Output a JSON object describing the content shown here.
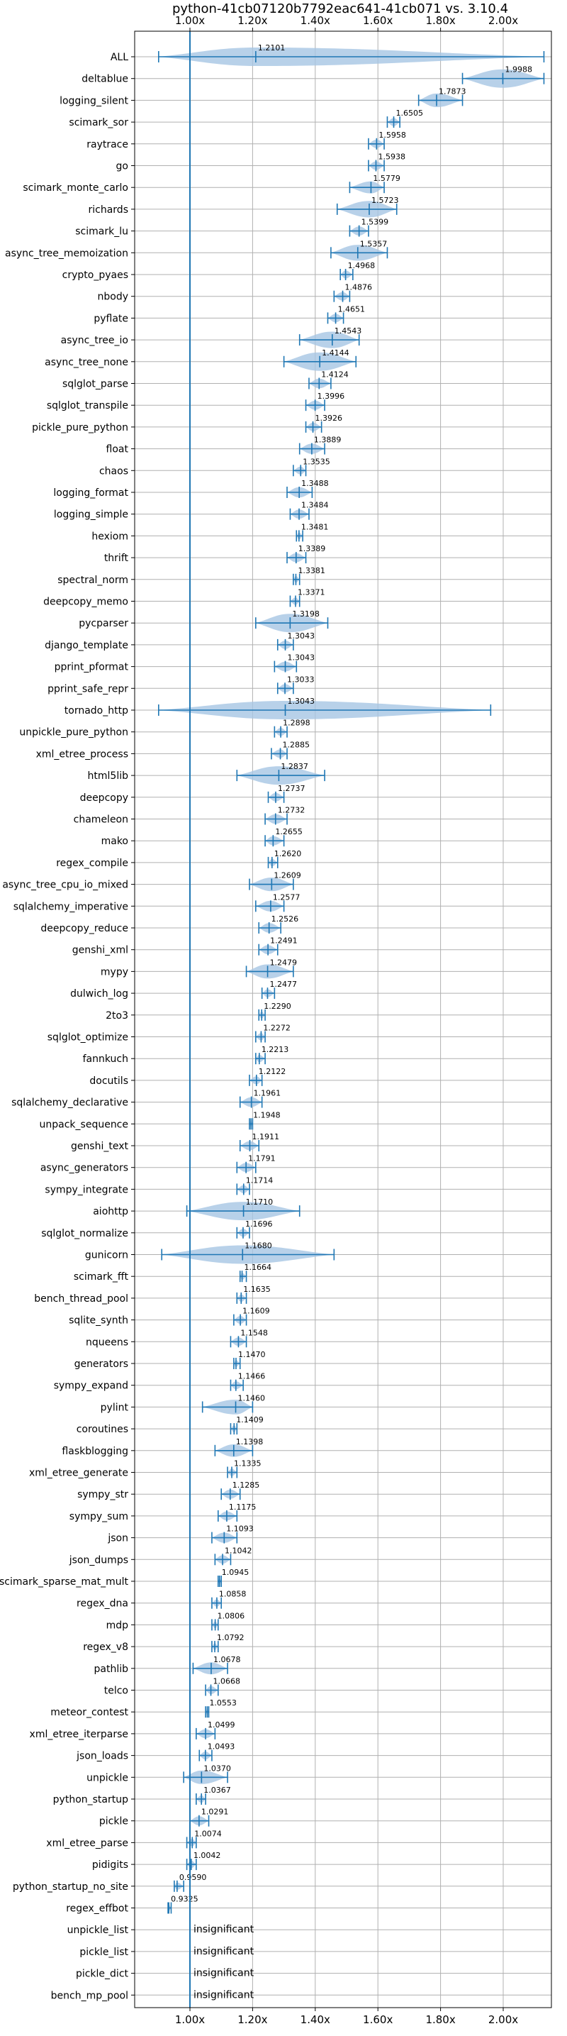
{
  "chart_data": {
    "type": "violin",
    "title": "python-41cb07120b7792eac641-41cb071 vs. 3.10.4",
    "xlim": [
      0.84,
      2.13
    ],
    "xticks": [
      1.0,
      1.2,
      1.4,
      1.6,
      1.8,
      2.0
    ],
    "xtick_labels": [
      "1.00x",
      "1.20x",
      "1.40x",
      "1.60x",
      "1.80x",
      "2.00x"
    ],
    "reference_line": 1.0,
    "grid": true,
    "colors": {
      "violin": "#a6c6e3",
      "whisker": "#1f77b4",
      "grid": "#b0b0b0"
    },
    "benchmarks": [
      {
        "name": "ALL",
        "value": 1.2101,
        "min": 0.9,
        "max": 2.13
      },
      {
        "name": "deltablue",
        "value": 1.9988,
        "min": 1.87,
        "max": 2.13
      },
      {
        "name": "logging_silent",
        "value": 1.7873,
        "min": 1.73,
        "max": 1.87
      },
      {
        "name": "scimark_sor",
        "value": 1.6505,
        "min": 1.63,
        "max": 1.67
      },
      {
        "name": "raytrace",
        "value": 1.5958,
        "min": 1.57,
        "max": 1.62
      },
      {
        "name": "go",
        "value": 1.5938,
        "min": 1.57,
        "max": 1.62
      },
      {
        "name": "scimark_monte_carlo",
        "value": 1.5779,
        "min": 1.51,
        "max": 1.62
      },
      {
        "name": "richards",
        "value": 1.5723,
        "min": 1.47,
        "max": 1.66
      },
      {
        "name": "scimark_lu",
        "value": 1.5399,
        "min": 1.51,
        "max": 1.57
      },
      {
        "name": "async_tree_memoization",
        "value": 1.5357,
        "min": 1.45,
        "max": 1.63
      },
      {
        "name": "crypto_pyaes",
        "value": 1.4968,
        "min": 1.48,
        "max": 1.52
      },
      {
        "name": "nbody",
        "value": 1.4876,
        "min": 1.46,
        "max": 1.51
      },
      {
        "name": "pyflate",
        "value": 1.4651,
        "min": 1.44,
        "max": 1.49
      },
      {
        "name": "async_tree_io",
        "value": 1.4543,
        "min": 1.35,
        "max": 1.54
      },
      {
        "name": "async_tree_none",
        "value": 1.4144,
        "min": 1.3,
        "max": 1.53
      },
      {
        "name": "sqlglot_parse",
        "value": 1.4124,
        "min": 1.38,
        "max": 1.45
      },
      {
        "name": "sqlglot_transpile",
        "value": 1.3996,
        "min": 1.37,
        "max": 1.43
      },
      {
        "name": "pickle_pure_python",
        "value": 1.3926,
        "min": 1.37,
        "max": 1.42
      },
      {
        "name": "float",
        "value": 1.3889,
        "min": 1.35,
        "max": 1.43
      },
      {
        "name": "chaos",
        "value": 1.3535,
        "min": 1.33,
        "max": 1.37
      },
      {
        "name": "logging_format",
        "value": 1.3488,
        "min": 1.31,
        "max": 1.39
      },
      {
        "name": "logging_simple",
        "value": 1.3484,
        "min": 1.32,
        "max": 1.38
      },
      {
        "name": "hexiom",
        "value": 1.3481,
        "min": 1.34,
        "max": 1.36
      },
      {
        "name": "thrift",
        "value": 1.3389,
        "min": 1.31,
        "max": 1.37
      },
      {
        "name": "spectral_norm",
        "value": 1.3381,
        "min": 1.33,
        "max": 1.35
      },
      {
        "name": "deepcopy_memo",
        "value": 1.3371,
        "min": 1.32,
        "max": 1.35
      },
      {
        "name": "pycparser",
        "value": 1.3198,
        "min": 1.21,
        "max": 1.44
      },
      {
        "name": "django_template",
        "value": 1.3043,
        "min": 1.28,
        "max": 1.33
      },
      {
        "name": "pprint_pformat",
        "value": 1.3043,
        "min": 1.27,
        "max": 1.34
      },
      {
        "name": "pprint_safe_repr",
        "value": 1.3033,
        "min": 1.28,
        "max": 1.33
      },
      {
        "name": "tornado_http",
        "value": 1.3043,
        "min": 0.9,
        "max": 1.96
      },
      {
        "name": "unpickle_pure_python",
        "value": 1.2898,
        "min": 1.27,
        "max": 1.31
      },
      {
        "name": "xml_etree_process",
        "value": 1.2885,
        "min": 1.26,
        "max": 1.31
      },
      {
        "name": "html5lib",
        "value": 1.2837,
        "min": 1.15,
        "max": 1.43
      },
      {
        "name": "deepcopy",
        "value": 1.2737,
        "min": 1.25,
        "max": 1.3
      },
      {
        "name": "chameleon",
        "value": 1.2732,
        "min": 1.24,
        "max": 1.31
      },
      {
        "name": "mako",
        "value": 1.2655,
        "min": 1.24,
        "max": 1.3
      },
      {
        "name": "regex_compile",
        "value": 1.262,
        "min": 1.25,
        "max": 1.28
      },
      {
        "name": "async_tree_cpu_io_mixed",
        "value": 1.2609,
        "min": 1.19,
        "max": 1.33
      },
      {
        "name": "sqlalchemy_imperative",
        "value": 1.2577,
        "min": 1.21,
        "max": 1.3
      },
      {
        "name": "deepcopy_reduce",
        "value": 1.2526,
        "min": 1.22,
        "max": 1.29
      },
      {
        "name": "genshi_xml",
        "value": 1.2491,
        "min": 1.22,
        "max": 1.28
      },
      {
        "name": "mypy",
        "value": 1.2479,
        "min": 1.18,
        "max": 1.33
      },
      {
        "name": "dulwich_log",
        "value": 1.2477,
        "min": 1.23,
        "max": 1.27
      },
      {
        "name": "2to3",
        "value": 1.229,
        "min": 1.22,
        "max": 1.24
      },
      {
        "name": "sqlglot_optimize",
        "value": 1.2272,
        "min": 1.21,
        "max": 1.24
      },
      {
        "name": "fannkuch",
        "value": 1.2213,
        "min": 1.21,
        "max": 1.24
      },
      {
        "name": "docutils",
        "value": 1.2122,
        "min": 1.19,
        "max": 1.23
      },
      {
        "name": "sqlalchemy_declarative",
        "value": 1.1961,
        "min": 1.16,
        "max": 1.23
      },
      {
        "name": "unpack_sequence",
        "value": 1.1948,
        "min": 1.19,
        "max": 1.2
      },
      {
        "name": "genshi_text",
        "value": 1.1911,
        "min": 1.16,
        "max": 1.22
      },
      {
        "name": "async_generators",
        "value": 1.1791,
        "min": 1.15,
        "max": 1.21
      },
      {
        "name": "sympy_integrate",
        "value": 1.1714,
        "min": 1.15,
        "max": 1.19
      },
      {
        "name": "aiohttp",
        "value": 1.171,
        "min": 0.99,
        "max": 1.35
      },
      {
        "name": "sqlglot_normalize",
        "value": 1.1696,
        "min": 1.15,
        "max": 1.19
      },
      {
        "name": "gunicorn",
        "value": 1.168,
        "min": 0.91,
        "max": 1.46
      },
      {
        "name": "scimark_fft",
        "value": 1.1664,
        "min": 1.16,
        "max": 1.18
      },
      {
        "name": "bench_thread_pool",
        "value": 1.1635,
        "min": 1.15,
        "max": 1.18
      },
      {
        "name": "sqlite_synth",
        "value": 1.1609,
        "min": 1.14,
        "max": 1.18
      },
      {
        "name": "nqueens",
        "value": 1.1548,
        "min": 1.13,
        "max": 1.18
      },
      {
        "name": "generators",
        "value": 1.147,
        "min": 1.14,
        "max": 1.16
      },
      {
        "name": "sympy_expand",
        "value": 1.1466,
        "min": 1.13,
        "max": 1.17
      },
      {
        "name": "pylint",
        "value": 1.146,
        "min": 1.04,
        "max": 1.2
      },
      {
        "name": "coroutines",
        "value": 1.1409,
        "min": 1.13,
        "max": 1.15
      },
      {
        "name": "flaskblogging",
        "value": 1.1398,
        "min": 1.08,
        "max": 1.2
      },
      {
        "name": "xml_etree_generate",
        "value": 1.1335,
        "min": 1.12,
        "max": 1.15
      },
      {
        "name": "sympy_str",
        "value": 1.1285,
        "min": 1.1,
        "max": 1.16
      },
      {
        "name": "sympy_sum",
        "value": 1.1175,
        "min": 1.09,
        "max": 1.15
      },
      {
        "name": "json",
        "value": 1.1093,
        "min": 1.07,
        "max": 1.15
      },
      {
        "name": "json_dumps",
        "value": 1.1042,
        "min": 1.08,
        "max": 1.13
      },
      {
        "name": "scimark_sparse_mat_mult",
        "value": 1.0945,
        "min": 1.09,
        "max": 1.1
      },
      {
        "name": "regex_dna",
        "value": 1.0858,
        "min": 1.07,
        "max": 1.1
      },
      {
        "name": "mdp",
        "value": 1.0806,
        "min": 1.07,
        "max": 1.09
      },
      {
        "name": "regex_v8",
        "value": 1.0792,
        "min": 1.07,
        "max": 1.09
      },
      {
        "name": "pathlib",
        "value": 1.0678,
        "min": 1.01,
        "max": 1.12
      },
      {
        "name": "telco",
        "value": 1.0668,
        "min": 1.05,
        "max": 1.09
      },
      {
        "name": "meteor_contest",
        "value": 1.0553,
        "min": 1.05,
        "max": 1.06
      },
      {
        "name": "xml_etree_iterparse",
        "value": 1.0499,
        "min": 1.02,
        "max": 1.08
      },
      {
        "name": "json_loads",
        "value": 1.0493,
        "min": 1.03,
        "max": 1.07
      },
      {
        "name": "unpickle",
        "value": 1.037,
        "min": 0.98,
        "max": 1.12
      },
      {
        "name": "python_startup",
        "value": 1.0367,
        "min": 1.02,
        "max": 1.05
      },
      {
        "name": "pickle",
        "value": 1.0291,
        "min": 1.0,
        "max": 1.06
      },
      {
        "name": "xml_etree_parse",
        "value": 1.0074,
        "min": 0.99,
        "max": 1.02
      },
      {
        "name": "pidigits",
        "value": 1.0042,
        "min": 0.99,
        "max": 1.02
      },
      {
        "name": "python_startup_no_site",
        "value": 0.959,
        "min": 0.95,
        "max": 0.98
      },
      {
        "name": "regex_effbot",
        "value": 0.9325,
        "min": 0.93,
        "max": 0.94
      },
      {
        "name": "unpickle_list",
        "insignificant": true
      },
      {
        "name": "pickle_list",
        "insignificant": true
      },
      {
        "name": "pickle_dict",
        "insignificant": true
      },
      {
        "name": "bench_mp_pool",
        "insignificant": true
      }
    ],
    "insignificant_label": "insignificant"
  }
}
